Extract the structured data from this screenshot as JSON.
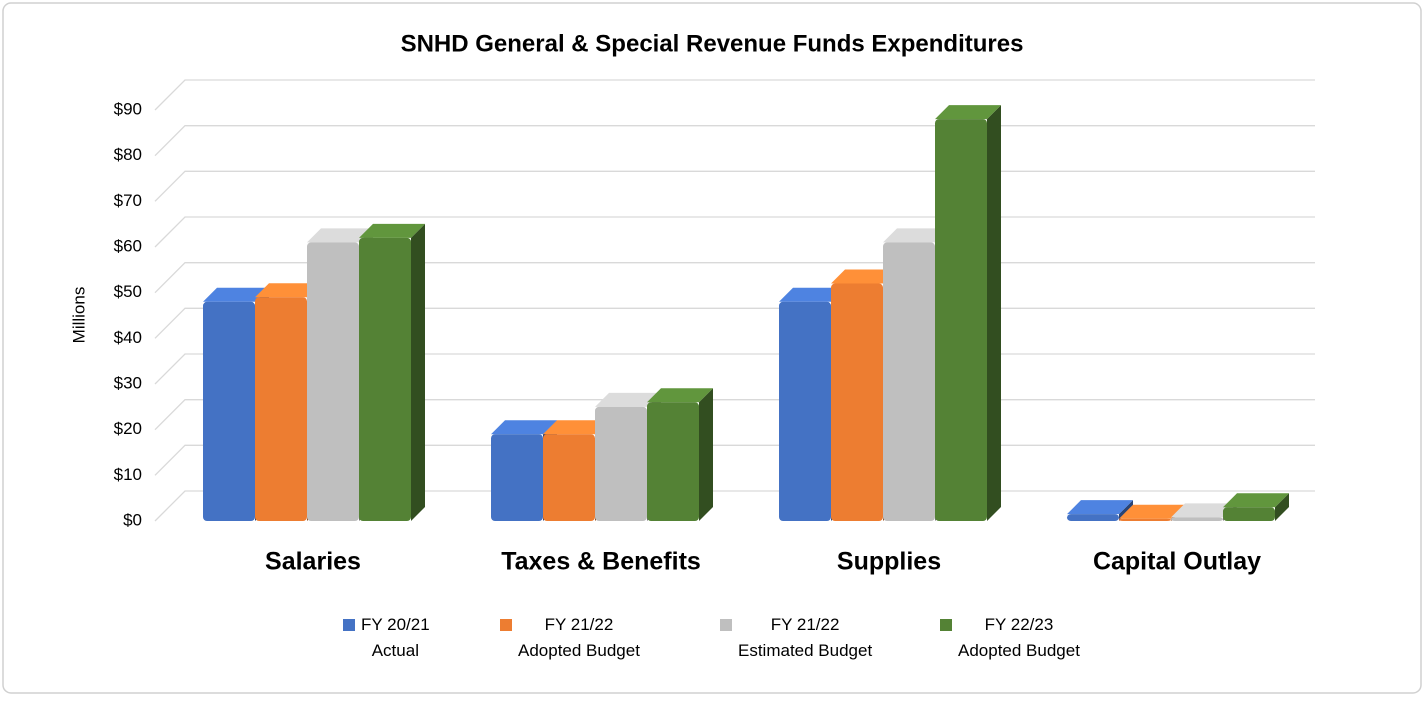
{
  "chart_data": {
    "type": "bar",
    "title": "SNHD General & Special Revenue Funds Expenditures",
    "y_label": "Millions",
    "categories": [
      "Salaries",
      "Taxes &  Benefits",
      "Supplies",
      "Capital Outlay"
    ],
    "series": [
      {
        "name": "FY 20/21\nActual",
        "color": "#4472c4",
        "values": [
          48,
          19,
          48,
          1.5
        ]
      },
      {
        "name": "FY 21/22\nAdopted Budget",
        "color": "#ed7d31",
        "values": [
          49,
          19,
          52,
          0.5
        ]
      },
      {
        "name": "FY 21/22\nEstimated Budget",
        "color": "#bfbfbf",
        "values": [
          61,
          25,
          61,
          0.8
        ]
      },
      {
        "name": "FY 22/23\nAdopted Budget",
        "color": "#548235",
        "values": [
          62,
          26,
          88,
          3
        ]
      }
    ],
    "ylim": [
      0,
      90
    ],
    "yticks": [
      {
        "value": 0,
        "label": "$0"
      },
      {
        "value": 10,
        "label": "$10"
      },
      {
        "value": 20,
        "label": "$20"
      },
      {
        "value": 30,
        "label": "$30"
      },
      {
        "value": 40,
        "label": "$40"
      },
      {
        "value": 50,
        "label": "$50"
      },
      {
        "value": 60,
        "label": "$60"
      },
      {
        "value": 70,
        "label": "$70"
      },
      {
        "value": 80,
        "label": "$80"
      },
      {
        "value": 90,
        "label": "$90"
      }
    ],
    "grid": true,
    "legend": "bottom"
  }
}
